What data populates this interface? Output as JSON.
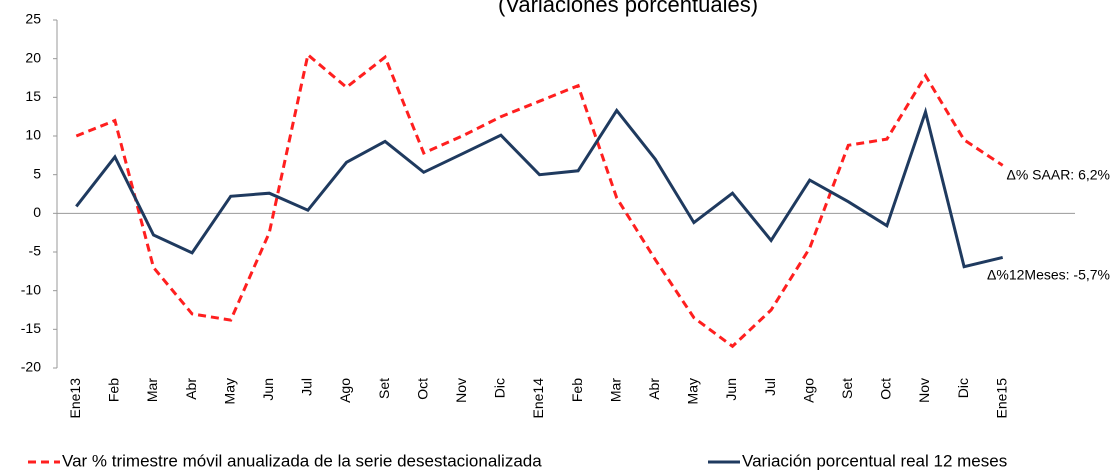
{
  "chart_data": {
    "type": "line",
    "title": "(Variaciones porcentuales)",
    "categories": [
      "Ene13",
      "Feb",
      "Mar",
      "Abr",
      "May",
      "Jun",
      "Jul",
      "Ago",
      "Set",
      "Oct",
      "Nov",
      "Dic",
      "Ene14",
      "Feb",
      "Mar",
      "Abr",
      "May",
      "Jun",
      "Jul",
      "Ago",
      "Set",
      "Oct",
      "Nov",
      "Dic",
      "Ene15"
    ],
    "series": [
      {
        "name": "Var %  trimestre móvil anualizada de la serie desestacionalizada",
        "color": "#ff1f1f",
        "dashed": true,
        "values": [
          10,
          12,
          -7,
          -13,
          -13.8,
          -2.5,
          20.5,
          16.3,
          20.2,
          7.8,
          10,
          12.5,
          14.5,
          16.5,
          2,
          -6,
          -13.5,
          -17.2,
          -12.5,
          -4.5,
          8.8,
          9.6,
          17.8,
          9.5,
          6.2
        ]
      },
      {
        "name": "Variación porcentual real 12 meses",
        "color": "#1f3a5f",
        "dashed": false,
        "values": [
          0.9,
          7.3,
          -2.8,
          -5.1,
          2.2,
          2.6,
          0.4,
          6.6,
          9.3,
          5.3,
          7.7,
          10.1,
          5,
          5.5,
          13.3,
          7,
          -1.2,
          2.6,
          -3.5,
          4.3,
          1.5,
          -1.6,
          13.1,
          -6.9,
          -5.7
        ]
      }
    ],
    "annotations": [
      "Δ% SAAR: 6,2%",
      "Δ%12Meses: -5,7%"
    ],
    "ylim": [
      -20,
      25
    ],
    "yticks": [
      -20,
      -15,
      -10,
      -5,
      0,
      5,
      10,
      15,
      20,
      25
    ],
    "grid": false
  }
}
